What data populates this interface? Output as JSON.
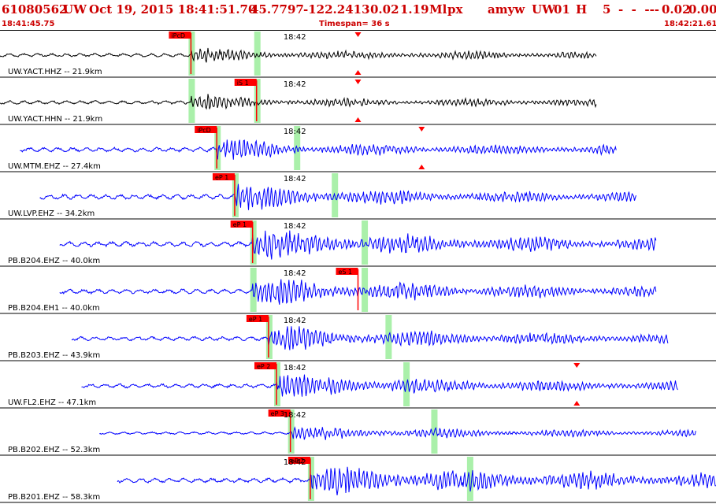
{
  "header": {
    "event_id": "61080562",
    "network": "UW",
    "datetime": "Oct 19, 2015 18:41:51.70",
    "lat": "45.7797",
    "lon": "-122.2413",
    "depth": "0.02",
    "magnitude": "1.19",
    "mag_type": "Ml",
    "type": "px",
    "user": "amyw",
    "auth": "UW",
    "version": "01",
    "quality": "H",
    "count": "5",
    "extras": "-  -  ---",
    "rms": "0.02",
    "err": "0.00"
  },
  "subheader": {
    "start_time": "18:41:45.75",
    "timespan_label": "Timespan=  36 s",
    "end_time": "18:42:21.61"
  },
  "colors": {
    "header_red": "#cc0000",
    "pick_red": "#ff0000",
    "velocity_trace": "#000000",
    "short_period_trace": "#0000ff",
    "window": "#aaf0aa"
  },
  "chart_data": {
    "type": "line",
    "title": "61080562 UW Oct 19, 2015 18:41:51.70",
    "xlabel": "",
    "ylabel": "",
    "x_range_seconds": [
      0,
      36
    ],
    "minute_mark": "18:42",
    "minute_mark_offset_s": 14.25,
    "series": [
      {
        "name": "UW.YACT.HHZ -- 21.9km",
        "color": "#000000",
        "start_s": 0.0,
        "end_s": 30.0,
        "arrival_s": 9.6,
        "amp": 14,
        "coda_decay": 0.1,
        "picks": [
          {
            "label": "iPcD",
            "t": 9.6
          }
        ],
        "windows_s": [
          9.6,
          12.9
        ],
        "peak_marker_s": 18.0
      },
      {
        "name": "UW.YACT.HHN -- 21.9km",
        "color": "#000000",
        "start_s": 0.0,
        "end_s": 30.0,
        "arrival_s": 9.6,
        "amp": 14,
        "coda_decay": 0.1,
        "picks": [
          {
            "label": "iS 1",
            "t": 12.9
          }
        ],
        "windows_s": [
          9.6,
          12.9
        ],
        "peak_marker_s": 18.0
      },
      {
        "name": "UW.MTM.EHZ -- 27.4km",
        "color": "#0000ff",
        "start_s": 1.0,
        "end_s": 31.0,
        "arrival_s": 10.9,
        "amp": 18,
        "coda_decay": 0.06,
        "picks": [
          {
            "label": "iPcD",
            "t": 10.9
          }
        ],
        "windows_s": [
          10.9,
          14.9
        ],
        "peak_marker_s": 21.2
      },
      {
        "name": "UW.LVP.EHZ -- 34.2km",
        "color": "#0000ff",
        "start_s": 2.0,
        "end_s": 32.0,
        "arrival_s": 11.8,
        "amp": 20,
        "coda_decay": 0.04,
        "picks": [
          {
            "label": "eP 1",
            "t": 11.8
          }
        ],
        "windows_s": [
          11.8,
          16.8
        ],
        "peak_marker_s": null
      },
      {
        "name": "PB.B204.EHZ -- 40.0km",
        "color": "#0000ff",
        "start_s": 3.0,
        "end_s": 33.0,
        "arrival_s": 12.7,
        "amp": 20,
        "coda_decay": 0.02,
        "picks": [
          {
            "label": "eP 1",
            "t": 12.7
          }
        ],
        "windows_s": [
          12.7,
          18.3
        ],
        "peak_marker_s": null
      },
      {
        "name": "PB.B204.EH1 -- 40.0km",
        "color": "#0000ff",
        "start_s": 3.0,
        "end_s": 33.0,
        "arrival_s": 12.7,
        "amp": 18,
        "coda_decay": 0.02,
        "picks": [
          {
            "label": "eS 1",
            "t": 18.0
          }
        ],
        "windows_s": [
          12.7,
          18.3
        ],
        "peak_marker_s": null
      },
      {
        "name": "PB.B203.EHZ -- 43.9km",
        "color": "#0000ff",
        "start_s": 3.6,
        "end_s": 33.6,
        "arrival_s": 13.5,
        "amp": 16,
        "coda_decay": 0.02,
        "picks": [
          {
            "label": "eP 1",
            "t": 13.5
          }
        ],
        "windows_s": [
          13.5,
          19.5
        ],
        "peak_marker_s": null
      },
      {
        "name": "UW.FL2.EHZ -- 47.1km",
        "color": "#0000ff",
        "start_s": 4.1,
        "end_s": 34.1,
        "arrival_s": 13.9,
        "amp": 16,
        "coda_decay": 0.02,
        "picks": [
          {
            "label": "eP 2",
            "t": 13.9
          }
        ],
        "windows_s": [
          13.9,
          20.4
        ],
        "peak_marker_s": 29.0
      },
      {
        "name": "PB.B202.EHZ -- 52.3km",
        "color": "#0000ff",
        "start_s": 5.0,
        "end_s": 35.0,
        "arrival_s": 14.6,
        "amp": 10,
        "coda_decay": 0.02,
        "picks": [
          {
            "label": "eP 3",
            "t": 14.6
          }
        ],
        "windows_s": [
          14.6,
          21.8
        ],
        "peak_marker_s": null
      },
      {
        "name": "PB.B201.EHZ -- 58.3km",
        "color": "#0000ff",
        "start_s": 5.9,
        "end_s": 36.0,
        "arrival_s": 15.6,
        "amp": 18,
        "coda_decay": 0.01,
        "picks": [
          {
            "label": "eP 2",
            "t": 15.6
          }
        ],
        "windows_s": [
          15.6,
          23.6
        ],
        "peak_marker_s": null
      }
    ]
  }
}
